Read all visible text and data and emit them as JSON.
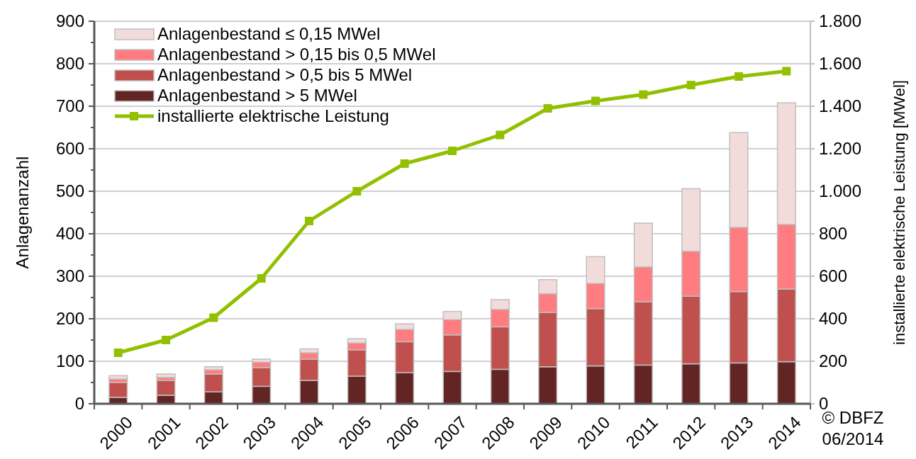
{
  "chart_data": {
    "type": "bar",
    "stacked": true,
    "ylabel": "Anlagenanzahl",
    "y2label": "installierte elektrische Leistung [MWel]",
    "categories": [
      "2000",
      "2001",
      "2002",
      "2003",
      "2004",
      "2005",
      "2006",
      "2007",
      "2008",
      "2009",
      "2010",
      "2011",
      "2012",
      "2013",
      "2014"
    ],
    "series": [
      {
        "name": "Anlagenbestand > 5 MWel",
        "color": "#632523",
        "values": [
          15,
          20,
          28,
          41,
          55,
          65,
          73,
          76,
          81,
          87,
          89,
          91,
          94,
          96,
          99
        ]
      },
      {
        "name": "Anlagenbestand > 0,5 bis 5 MWel",
        "color": "#c0504d",
        "values": [
          35,
          35,
          42,
          44,
          50,
          62,
          73,
          86,
          100,
          128,
          135,
          149,
          159,
          168,
          171
        ]
      },
      {
        "name": "Anlagenbestand > 0,15 bis 0,5 MWel",
        "color": "#ff7c80",
        "values": [
          8,
          7,
          10,
          13,
          15,
          16,
          29,
          36,
          41,
          44,
          59,
          82,
          106,
          151,
          152
        ]
      },
      {
        "name": "Anlagenbestand ≤ 0,15 MWel",
        "color": "#f2dcdb",
        "values": [
          8,
          8,
          7,
          7,
          9,
          10,
          13,
          19,
          23,
          33,
          63,
          103,
          147,
          223,
          286
        ]
      },
      {
        "name": "installierte elektrische Leistung",
        "type": "line",
        "axis": "y2",
        "color": "#92c000",
        "marker": "square",
        "values": [
          240,
          300,
          405,
          590,
          860,
          1000,
          1130,
          1190,
          1265,
          1390,
          1425,
          1455,
          1500,
          1540,
          1565
        ]
      }
    ],
    "ylim": [
      0,
      900
    ],
    "yticks": [
      0,
      100,
      200,
      300,
      400,
      500,
      600,
      700,
      800,
      900
    ],
    "y2lim": [
      0,
      1800
    ],
    "y2ticks": [
      0,
      200,
      400,
      600,
      800,
      {
        "value": 1000,
        "label": "1.000"
      },
      {
        "value": 1200,
        "label": "1.200"
      },
      {
        "value": 1400,
        "label": "1.400"
      },
      {
        "value": 1600,
        "label": "1.600"
      },
      {
        "value": 1800,
        "label": "1.800"
      }
    ],
    "grid": "y",
    "legend": "top left",
    "annotations": [
      "© DBFZ",
      "06/2014"
    ]
  }
}
